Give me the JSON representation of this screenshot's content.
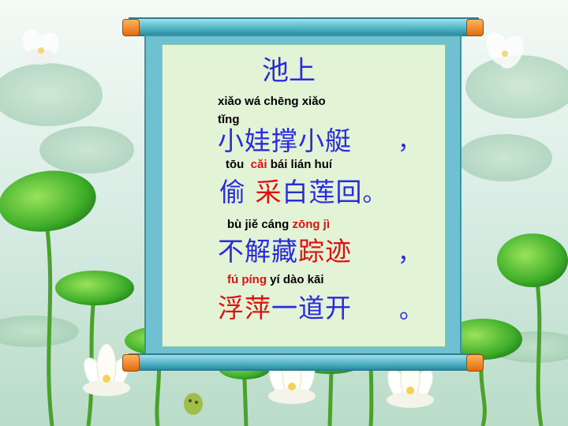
{
  "title": "池上",
  "lines": [
    {
      "pinyin": [
        "xiǎo wá chēng xiǎo",
        "tǐng"
      ],
      "hanzi": "小娃撑小艇",
      "punct": "，"
    },
    {
      "pinyin": [
        "tōu",
        "cǎi",
        "bái lián huí"
      ],
      "hanzi": [
        "偷",
        "采",
        "白莲回"
      ],
      "punct": "。"
    },
    {
      "pinyin": [
        "bù jiě cáng",
        "zōng jì"
      ],
      "hanzi": [
        "不解藏",
        "踪迹"
      ],
      "punct": "，"
    },
    {
      "pinyin": [
        "fú píng",
        "yí dào kāi"
      ],
      "hanzi": [
        "浮萍",
        "一道开"
      ],
      "punct": "。"
    }
  ],
  "colors": {
    "hanzi": "#2a2ae0",
    "highlight": "#e01010",
    "paper": "#e3f4d6",
    "frame": "#6fc0d0"
  }
}
